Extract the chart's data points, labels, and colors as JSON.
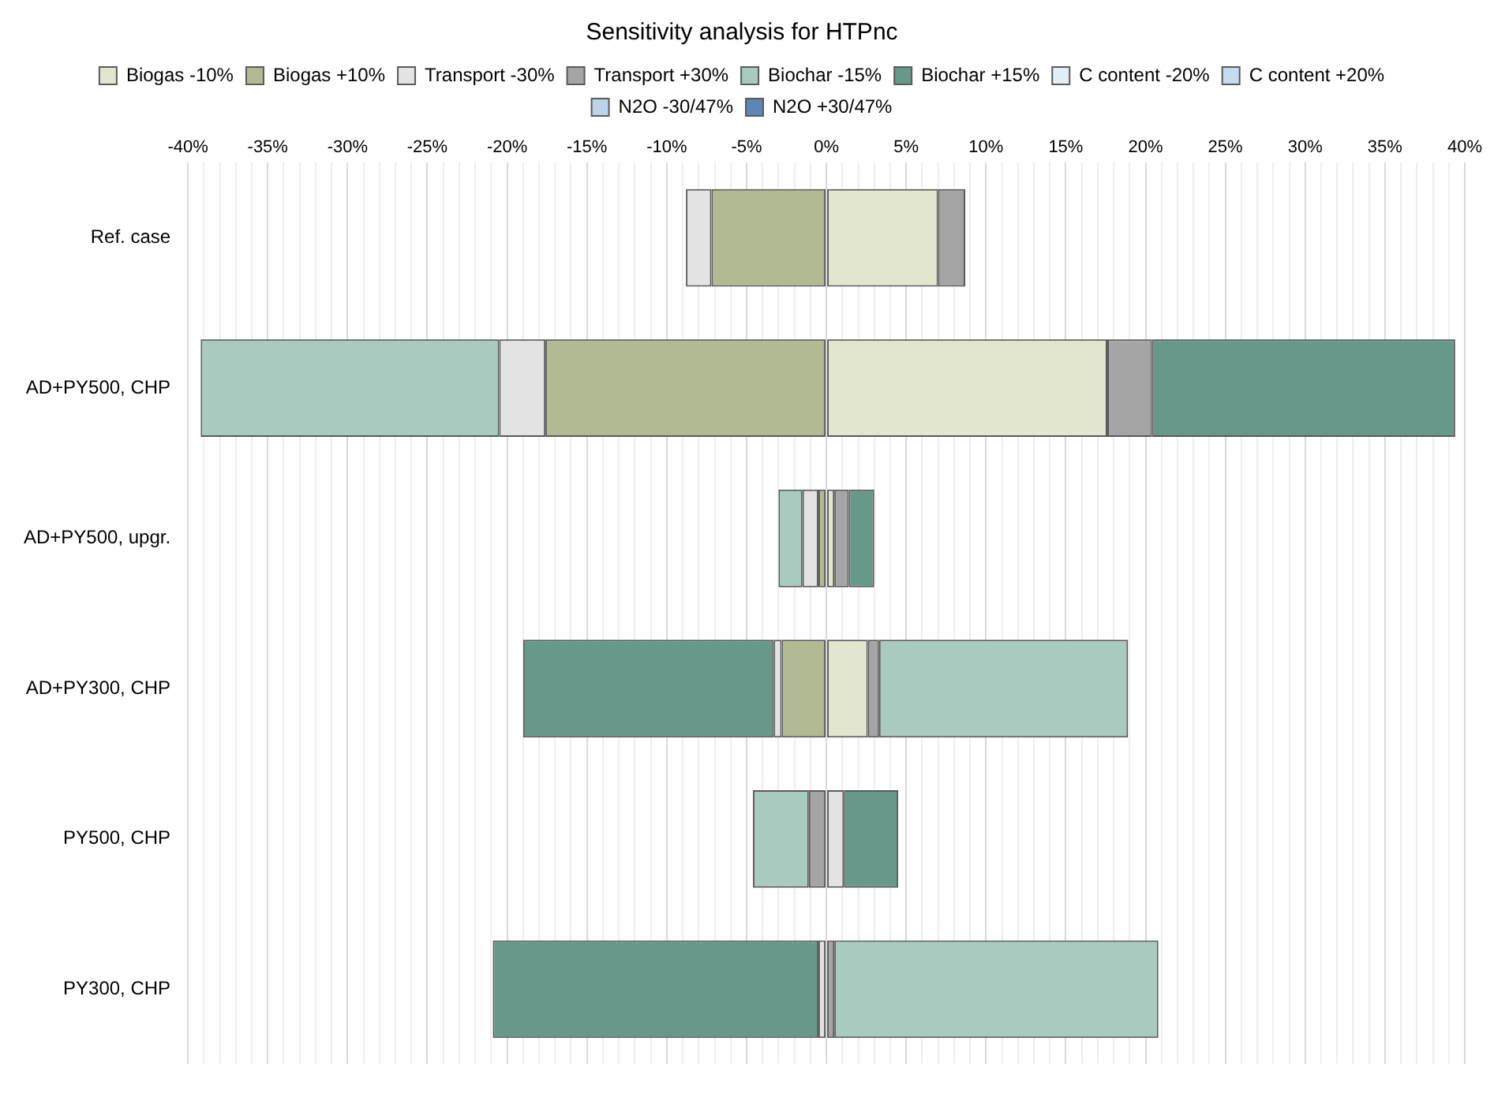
{
  "chart_data": {
    "type": "bar",
    "orientation": "horizontal",
    "stacked": true,
    "title": "Sensitivity analysis for HTPnc",
    "legend": "top",
    "grid": "x",
    "categories": [
      "Ref. case",
      "AD+PY500, CHP",
      "AD+PY500, upgr.",
      "AD+PY300, CHP",
      "PY500, CHP",
      "PY300, CHP"
    ],
    "series": [
      {
        "name": "Biogas -10%",
        "color": "#e2e6cf",
        "values": [
          7.0,
          17.6,
          0.5,
          2.6,
          null,
          null
        ]
      },
      {
        "name": "Biogas +10%",
        "color": "#b2ba94",
        "values": [
          -7.2,
          -17.6,
          -0.5,
          -2.8,
          null,
          null
        ]
      },
      {
        "name": "Transport -30%",
        "color": "#e3e3e3",
        "values": [
          -1.6,
          -2.9,
          -1.0,
          -0.5,
          1.1,
          -0.5
        ]
      },
      {
        "name": "Transport +30%",
        "color": "#a5a5a5",
        "values": [
          1.7,
          2.8,
          0.9,
          0.7,
          -1.1,
          0.5
        ]
      },
      {
        "name": "Biochar -15%",
        "color": "#a8cabf",
        "values": [
          null,
          -18.7,
          -1.5,
          15.6,
          -3.5,
          20.3
        ]
      },
      {
        "name": "Biochar +15%",
        "color": "#66998a",
        "values": [
          null,
          19.0,
          1.6,
          -15.7,
          3.4,
          -20.4
        ]
      },
      {
        "name": "C content -20%",
        "color": "#e3eef8",
        "values": [
          null,
          null,
          null,
          null,
          null,
          null
        ]
      },
      {
        "name": "C content +20%",
        "color": "#c5dcf0",
        "values": [
          null,
          null,
          null,
          null,
          null,
          null
        ]
      },
      {
        "name": "N2O -30/47%",
        "color": "#bcd3ea",
        "values": [
          null,
          null,
          null,
          null,
          null,
          null
        ]
      },
      {
        "name": "N2O +30/47%",
        "color": "#5b86b5",
        "values": [
          null,
          null,
          null,
          null,
          null,
          null
        ]
      }
    ],
    "xlim": [
      -40,
      40
    ],
    "xticks": [
      {
        "value": -40,
        "label": "-40%"
      },
      {
        "value": -39,
        "label": null
      },
      {
        "value": -38,
        "label": null
      },
      {
        "value": -37,
        "label": null
      },
      {
        "value": -36,
        "label": null
      },
      {
        "value": -35,
        "label": "-35%"
      },
      {
        "value": -34,
        "label": null
      },
      {
        "value": -33,
        "label": null
      },
      {
        "value": -32,
        "label": null
      },
      {
        "value": -31,
        "label": null
      },
      {
        "value": -30,
        "label": "-30%"
      },
      {
        "value": -29,
        "label": null
      },
      {
        "value": -28,
        "label": null
      },
      {
        "value": -27,
        "label": null
      },
      {
        "value": -26,
        "label": null
      },
      {
        "value": -25,
        "label": "-25%"
      },
      {
        "value": -24,
        "label": null
      },
      {
        "value": -23,
        "label": null
      },
      {
        "value": -22,
        "label": null
      },
      {
        "value": -21,
        "label": null
      },
      {
        "value": -20,
        "label": "-20%"
      },
      {
        "value": -19,
        "label": null
      },
      {
        "value": -18,
        "label": null
      },
      {
        "value": -17,
        "label": null
      },
      {
        "value": -16,
        "label": null
      },
      {
        "value": -15,
        "label": "-15%"
      },
      {
        "value": -14,
        "label": null
      },
      {
        "value": -13,
        "label": null
      },
      {
        "value": -12,
        "label": null
      },
      {
        "value": -11,
        "label": null
      },
      {
        "value": -10,
        "label": "-10%"
      },
      {
        "value": -9,
        "label": null
      },
      {
        "value": -8,
        "label": null
      },
      {
        "value": -7,
        "label": null
      },
      {
        "value": -6,
        "label": null
      },
      {
        "value": -5,
        "label": "-5%"
      },
      {
        "value": -4,
        "label": null
      },
      {
        "value": -3,
        "label": null
      },
      {
        "value": -2,
        "label": null
      },
      {
        "value": -1,
        "label": null
      },
      {
        "value": 0,
        "label": "0%"
      },
      {
        "value": 1,
        "label": null
      },
      {
        "value": 2,
        "label": null
      },
      {
        "value": 3,
        "label": null
      },
      {
        "value": 4,
        "label": null
      },
      {
        "value": 5,
        "label": "5%"
      },
      {
        "value": 6,
        "label": null
      },
      {
        "value": 7,
        "label": null
      },
      {
        "value": 8,
        "label": null
      },
      {
        "value": 9,
        "label": null
      },
      {
        "value": 10,
        "label": "10%"
      },
      {
        "value": 11,
        "label": null
      },
      {
        "value": 12,
        "label": null
      },
      {
        "value": 13,
        "label": null
      },
      {
        "value": 14,
        "label": null
      },
      {
        "value": 15,
        "label": "15%"
      },
      {
        "value": 16,
        "label": null
      },
      {
        "value": 17,
        "label": null
      },
      {
        "value": 18,
        "label": null
      },
      {
        "value": 19,
        "label": null
      },
      {
        "value": 20,
        "label": "20%"
      },
      {
        "value": 21,
        "label": null
      },
      {
        "value": 22,
        "label": null
      },
      {
        "value": 23,
        "label": null
      },
      {
        "value": 24,
        "label": null
      },
      {
        "value": 25,
        "label": "25%"
      },
      {
        "value": 26,
        "label": null
      },
      {
        "value": 27,
        "label": null
      },
      {
        "value": 28,
        "label": null
      },
      {
        "value": 29,
        "label": null
      },
      {
        "value": 30,
        "label": "30%"
      },
      {
        "value": 31,
        "label": null
      },
      {
        "value": 32,
        "label": null
      },
      {
        "value": 33,
        "label": null
      },
      {
        "value": 34,
        "label": null
      },
      {
        "value": 35,
        "label": "35%"
      },
      {
        "value": 36,
        "label": null
      },
      {
        "value": 37,
        "label": null
      },
      {
        "value": 38,
        "label": null
      },
      {
        "value": 39,
        "label": null
      },
      {
        "value": 40,
        "label": "40%"
      }
    ]
  }
}
